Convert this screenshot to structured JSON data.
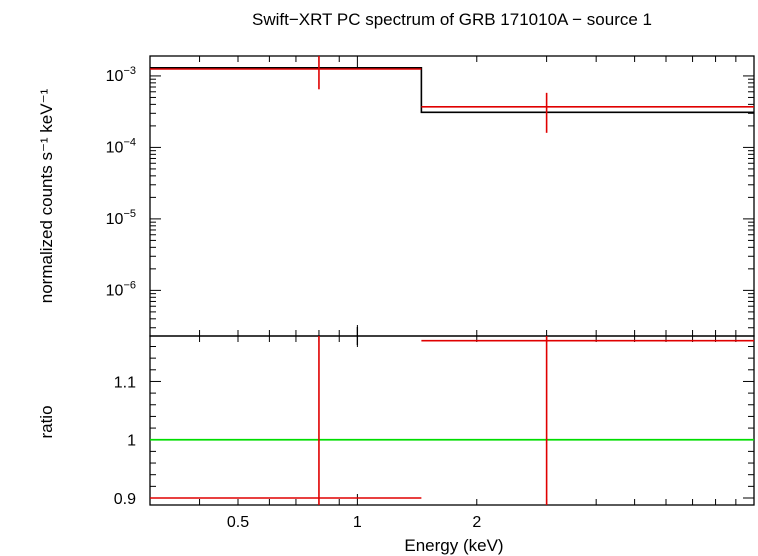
{
  "chart_data": [
    {
      "type": "line",
      "title": "Swift−XRT PC spectrum of GRB 171010A − source 1",
      "ylabel": "normalized counts s⁻¹ keV⁻¹",
      "yscale": "log",
      "ylim": [
        2.3e-07,
        0.0019
      ],
      "xscale": "log",
      "xlim": [
        0.3,
        10
      ],
      "y_tick_labels": [
        {
          "value": 0.001,
          "mantissa": "10",
          "exp": "−3"
        },
        {
          "value": 0.0001,
          "mantissa": "10",
          "exp": "−4"
        },
        {
          "value": 1e-05,
          "mantissa": "10",
          "exp": "−5"
        },
        {
          "value": 1e-06,
          "mantissa": "10",
          "exp": "−6"
        }
      ],
      "series": [
        {
          "kind": "data",
          "color": "#e00000",
          "points": [
            {
              "x": 0.8,
              "xlo": 0.3,
              "xhi": 1.45,
              "y": 0.00125,
              "ylo": 0.00065,
              "yhi": 0.0019
            },
            {
              "x": 3.0,
              "xlo": 1.45,
              "xhi": 10,
              "y": 0.00037,
              "ylo": 0.00016,
              "yhi": 0.00058
            }
          ]
        },
        {
          "kind": "model",
          "color": "#000000",
          "steps": [
            {
              "xlo": 0.3,
              "xhi": 1.45,
              "y": 0.0013
            },
            {
              "xlo": 1.45,
              "xhi": 10,
              "y": 0.00031
            }
          ]
        }
      ]
    },
    {
      "type": "line",
      "ylabel": "ratio",
      "xlabel": "Energy (keV)",
      "xscale": "log",
      "xlim": [
        0.3,
        10
      ],
      "ylim": [
        0.888,
        1.178
      ],
      "x_tick_labels": [
        {
          "value": 0.5,
          "label": "0.5"
        },
        {
          "value": 1,
          "label": "1"
        },
        {
          "value": 2,
          "label": "2"
        }
      ],
      "y_tick_labels": [
        {
          "value": 0.9,
          "label": "0.9"
        },
        {
          "value": 1.0,
          "label": "1"
        },
        {
          "value": 1.1,
          "label": "1.1"
        }
      ],
      "reference_line": {
        "y": 1.0,
        "color": "#00dd00"
      },
      "series": [
        {
          "kind": "ratio",
          "color": "#e00000",
          "points": [
            {
              "x": 0.8,
              "xlo": 0.3,
              "xhi": 1.45,
              "y": 0.9
            },
            {
              "x": 3.0,
              "xlo": 1.45,
              "xhi": 10,
              "y": 1.17
            }
          ]
        }
      ]
    }
  ]
}
